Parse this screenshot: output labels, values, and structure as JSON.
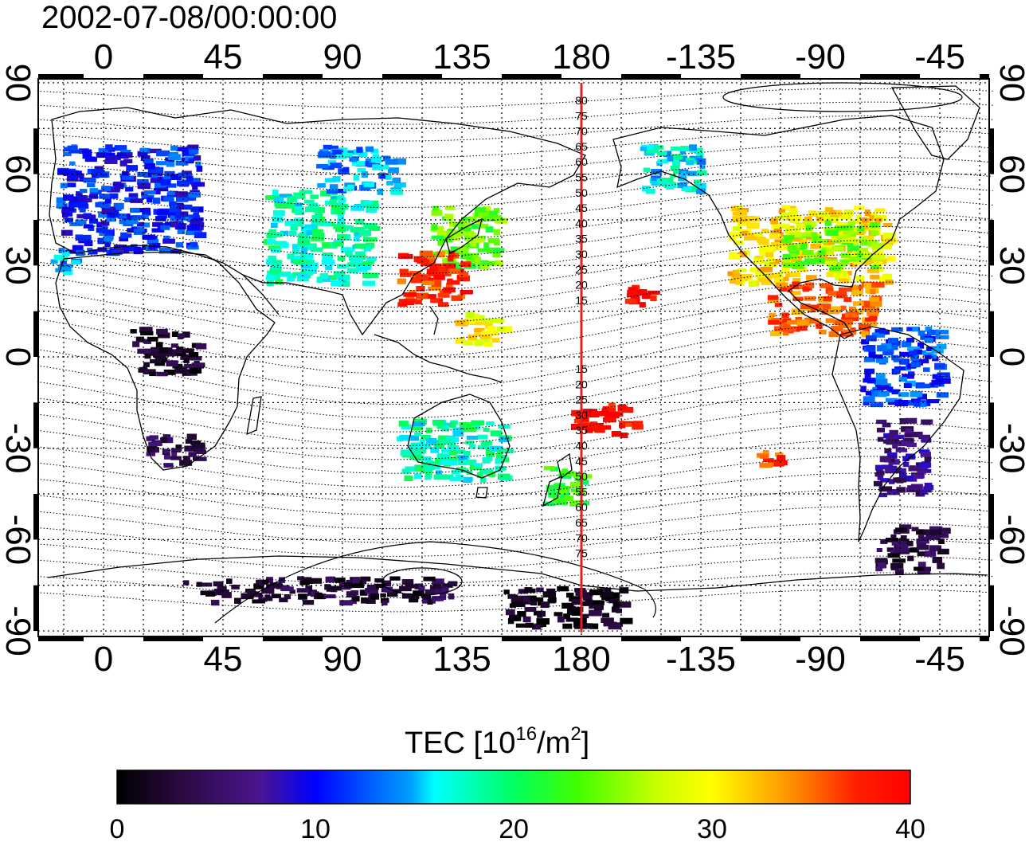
{
  "title": "2002-07-08/00:00:00",
  "lon_ticks": [
    "0",
    "45",
    "90",
    "135",
    "180",
    "-135",
    "-90",
    "-45"
  ],
  "lat_ticks": [
    "90",
    "60",
    "30",
    "0",
    "-30",
    "-60",
    "-90"
  ],
  "colorbar": {
    "title_main": "TEC  [10",
    "title_sup1": "16",
    "title_mid": "/m",
    "title_sup2": "2",
    "title_end": "]",
    "ticks": [
      "0",
      "10",
      "20",
      "30",
      "40"
    ],
    "range": [
      0,
      40
    ]
  },
  "meridian_lon": 180,
  "mlat_labels_north": [
    "80",
    "75",
    "70",
    "65",
    "60",
    "55",
    "50",
    "45",
    "40",
    "35",
    "30",
    "25",
    "20",
    "15"
  ],
  "mlat_labels_south": [
    "15",
    "20",
    "25",
    "30",
    "35",
    "40",
    "45",
    "50",
    "55",
    "60",
    "65",
    "70",
    "75"
  ],
  "chart_data": {
    "type": "heatmap",
    "quantity": "TEC",
    "units": "10^16/m^2",
    "lon_range_deg": [
      -25,
      335
    ],
    "lat_range_deg": [
      -90,
      90
    ],
    "map_colors": {
      "background": "#ffffff",
      "coast": "#000000",
      "meridian": "#e02020"
    },
    "regions": [
      {
        "lon": [
          -18,
          35
        ],
        "lat": [
          35,
          70
        ],
        "tec": 11
      },
      {
        "lon": [
          -20,
          -10
        ],
        "lat": [
          28,
          36
        ],
        "tec": 14
      },
      {
        "lon": [
          60,
          100
        ],
        "lat": [
          25,
          55
        ],
        "tec": 18
      },
      {
        "lon": [
          80,
          110
        ],
        "lat": [
          55,
          70
        ],
        "tec": 14
      },
      {
        "lon": [
          122,
          148
        ],
        "lat": [
          30,
          50
        ],
        "tec": 24
      },
      {
        "lon": [
          110,
          135
        ],
        "lat": [
          18,
          35
        ],
        "tec": 37
      },
      {
        "lon": [
          132,
          150
        ],
        "lat": [
          5,
          15
        ],
        "tec": 30
      },
      {
        "lon": [
          10,
          35
        ],
        "lat": [
          -5,
          10
        ],
        "tec": 2
      },
      {
        "lon": [
          15,
          35
        ],
        "lat": [
          -35,
          -25
        ],
        "tec": 4
      },
      {
        "lon": [
          110,
          150
        ],
        "lat": [
          -40,
          -20
        ],
        "tec": 18
      },
      {
        "lon": [
          165,
          180
        ],
        "lat": [
          -48,
          -35
        ],
        "tec": 22
      },
      {
        "lon": [
          175,
          200
        ],
        "lat": [
          -25,
          -15
        ],
        "tec": 39
      },
      {
        "lon": [
          196,
          206
        ],
        "lat": [
          18,
          25
        ],
        "tec": 39
      },
      {
        "lon": [
          202,
          225
        ],
        "lat": [
          55,
          70
        ],
        "tec": 16
      },
      {
        "lon": [
          235,
          295
        ],
        "lat": [
          25,
          50
        ],
        "tec": 31
      },
      {
        "lon": [
          255,
          290
        ],
        "lat": [
          30,
          45
        ],
        "tec": 25
      },
      {
        "lon": [
          250,
          290
        ],
        "lat": [
          8,
          25
        ],
        "tec": 35
      },
      {
        "lon": [
          285,
          315
        ],
        "lat": [
          -15,
          10
        ],
        "tec": 12
      },
      {
        "lon": [
          290,
          310
        ],
        "lat": [
          -45,
          -20
        ],
        "tec": 6
      },
      {
        "lon": [
          290,
          315
        ],
        "lat": [
          -70,
          -55
        ],
        "tec": 3
      },
      {
        "lon": [
          30,
          130
        ],
        "lat": [
          -80,
          -72
        ],
        "tec": 3
      },
      {
        "lon": [
          150,
          195
        ],
        "lat": [
          -88,
          -75
        ],
        "tec": 1
      },
      {
        "lon": [
          245,
          255
        ],
        "lat": [
          -35,
          -30
        ],
        "tec": 37
      }
    ]
  }
}
